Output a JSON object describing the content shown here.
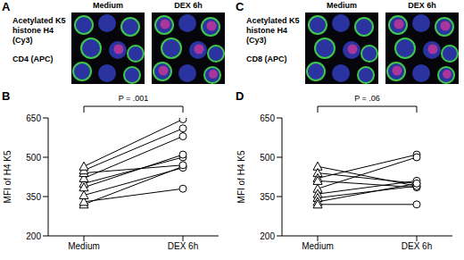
{
  "image_panels": [
    {
      "panel": "A",
      "columns": [
        "Medium",
        "DEX 6h"
      ],
      "labels": [
        "Acetylated K5 histone H4 (Cy3)",
        "CD4 (APC)"
      ]
    },
    {
      "panel": "C",
      "columns": [
        "Medium",
        "DEX 6h"
      ],
      "labels": [
        "Acetylated K5 histone H4 (Cy3)",
        "CD8 (APC)"
      ]
    }
  ],
  "chart_data": [
    {
      "panel": "B",
      "type": "line",
      "categories": [
        "Medium",
        "DEX 6h"
      ],
      "y_label": "MFI of H4 K5",
      "annotation": "P = .001",
      "ylim": [
        200,
        650
      ],
      "yticks": [
        200,
        350,
        500,
        650
      ],
      "color": "#000000",
      "marker": "open",
      "series": [
        {
          "values": [
            320,
            465
          ]
        },
        {
          "values": [
            330,
            380
          ]
        },
        {
          "values": [
            355,
            460
          ]
        },
        {
          "values": [
            400,
            500
          ]
        },
        {
          "values": [
            420,
            580
          ]
        },
        {
          "values": [
            440,
            470
          ]
        },
        {
          "values": [
            450,
            610
          ]
        },
        {
          "values": [
            465,
            645
          ]
        },
        {
          "values": [
            385,
            510
          ]
        }
      ]
    },
    {
      "panel": "D",
      "type": "line",
      "categories": [
        "Medium",
        "DEX 6h"
      ],
      "y_label": "MFI of H4 K5",
      "annotation": "P = .06",
      "ylim": [
        200,
        650
      ],
      "yticks": [
        200,
        350,
        500,
        650
      ],
      "color": "#000000",
      "marker": "open",
      "series": [
        {
          "values": [
            465,
            390
          ]
        },
        {
          "values": [
            440,
            400
          ]
        },
        {
          "values": [
            420,
            510
          ]
        },
        {
          "values": [
            410,
            385
          ]
        },
        {
          "values": [
            380,
            500
          ]
        },
        {
          "values": [
            360,
            410
          ]
        },
        {
          "values": [
            345,
            390
          ]
        },
        {
          "values": [
            330,
            400
          ]
        },
        {
          "values": [
            320,
            320
          ]
        }
      ]
    }
  ]
}
